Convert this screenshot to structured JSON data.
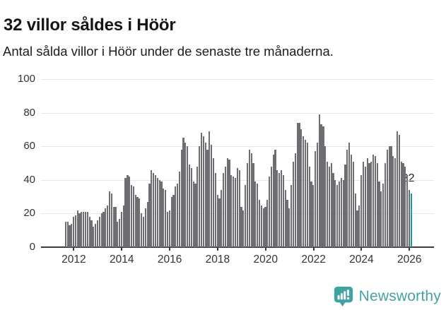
{
  "header": {
    "title": "32 villor såldes i Höör",
    "subtitle": "Antal sålda villor i Höör under de senaste tre månaderna."
  },
  "chart_data": {
    "type": "bar",
    "title": "32 villor såldes i Höör",
    "xlabel": "",
    "ylabel": "",
    "ylim": [
      0,
      100
    ],
    "y_ticks": [
      0,
      20,
      40,
      60,
      80,
      100
    ],
    "grid": "horizontal",
    "legend": "none",
    "x_unit": "month",
    "x_start_month": "2011-09",
    "x_ticks": [
      {
        "label": "2012",
        "month_index": 4
      },
      {
        "label": "2014",
        "month_index": 28
      },
      {
        "label": "2016",
        "month_index": 52
      },
      {
        "label": "2018",
        "month_index": 76
      },
      {
        "label": "2020",
        "month_index": 100
      },
      {
        "label": "2022",
        "month_index": 124
      },
      {
        "label": "2024",
        "month_index": 148
      },
      {
        "label": "2026",
        "month_index": 172
      }
    ],
    "bar_color": "#6e6e72",
    "highlight": "last-bar",
    "highlight_color": "#12a0a0",
    "annotation": {
      "text": "32",
      "value": 32,
      "position": "last-bar"
    },
    "values": [
      15,
      15,
      13,
      14,
      18,
      19,
      22,
      20,
      21,
      21,
      21,
      21,
      18,
      16,
      12,
      14,
      16,
      18,
      20,
      21,
      23,
      25,
      33,
      32,
      24,
      24,
      15,
      17,
      21,
      25,
      41,
      43,
      42,
      37,
      36,
      31,
      30,
      29,
      20,
      18,
      23,
      27,
      38,
      46,
      44,
      43,
      41,
      40,
      39,
      35,
      34,
      21,
      22,
      30,
      31,
      36,
      38,
      45,
      58,
      65,
      62,
      60,
      49,
      47,
      39,
      38,
      48,
      60,
      68,
      66,
      62,
      58,
      69,
      61,
      53,
      44,
      31,
      29,
      34,
      44,
      48,
      53,
      52,
      43,
      42,
      41,
      47,
      46,
      24,
      22,
      37,
      50,
      58,
      56,
      50,
      39,
      38,
      28,
      25,
      23,
      24,
      28,
      42,
      48,
      55,
      58,
      46,
      44,
      46,
      43,
      34,
      28,
      23,
      37,
      51,
      56,
      74,
      74,
      70,
      66,
      64,
      62,
      48,
      39,
      37,
      57,
      62,
      79,
      73,
      72,
      60,
      51,
      48,
      50,
      44,
      40,
      37,
      39,
      41,
      40,
      49,
      58,
      62,
      55,
      51,
      32,
      22,
      25,
      43,
      51,
      48,
      53,
      50,
      51,
      55,
      54,
      50,
      39,
      33,
      38,
      50,
      58,
      60,
      60,
      54,
      53,
      69,
      67,
      51,
      50,
      48,
      43,
      34,
      32
    ]
  },
  "branding": {
    "name": "Newsworthy",
    "color": "#46a2a2"
  }
}
